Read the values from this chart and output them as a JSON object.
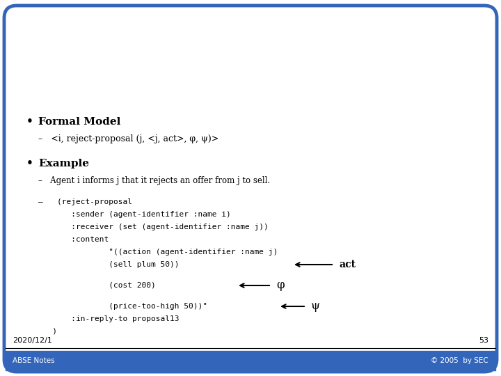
{
  "bg_color": "#ffffff",
  "border_color": "#3366bb",
  "footer_bg_color": "#3366bb",
  "footer_text_left": "ABSE Notes",
  "footer_text_right": "© 2005  by SEC",
  "date_text": "2020/12/1",
  "page_num": "53",
  "bullet1_title": "Formal Model",
  "bullet1_sub": "–   <i, reject-proposal (j, <j, act>, φ, ψ)>",
  "bullet2_title": "Example",
  "bullet2_sub1": "–   Agent i informs j that it rejects an offer from j to sell.",
  "code_line0": "–   (reject-proposal",
  "code_line1": "       :sender (agent-identifier :name i)",
  "code_line2": "       :receiver (set (agent-identifier :name j))",
  "code_line3": "       :content",
  "code_line4": "               \"((action (agent-identifier :name j)",
  "code_line5": "               (sell plum 50))",
  "code_line6": "               (cost 200)",
  "code_line7": "               (price-too-high 50))\"",
  "code_line8": "       :in-reply-to proposal13",
  "code_line9": "   )",
  "label_act": "act",
  "label_phi": "φ",
  "label_psi": "ψ"
}
